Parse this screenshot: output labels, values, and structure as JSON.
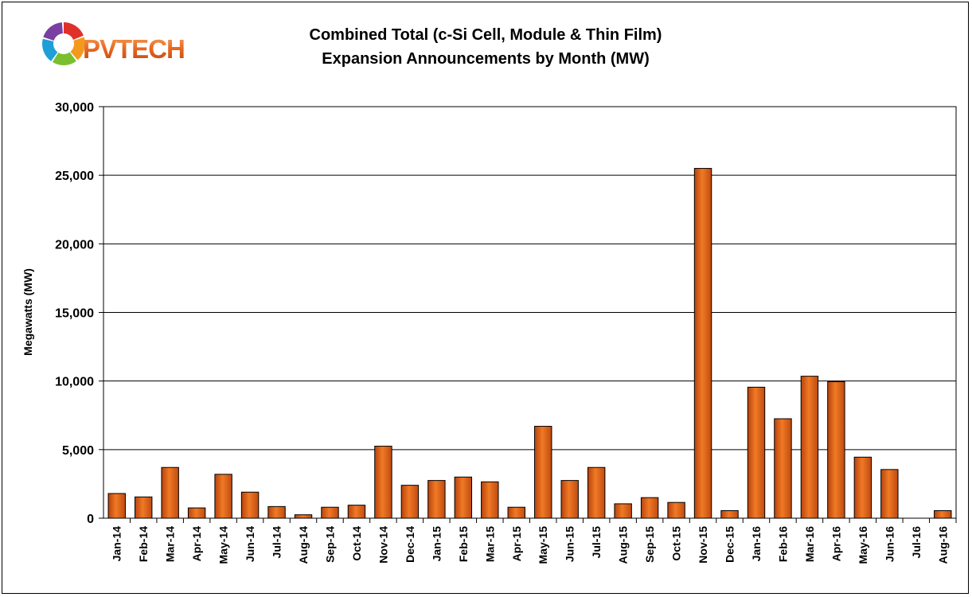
{
  "logo": {
    "text": "PVTECH",
    "text_color": "#e8661f",
    "ring_colors": [
      "#e0302a",
      "#f39a1c",
      "#7bbf2f",
      "#1e9fd8",
      "#7a3fa0"
    ]
  },
  "chart_data": {
    "type": "bar",
    "title_lines": [
      "Combined Total (c-Si Cell, Module & Thin Film)",
      "Expansion Announcements by Month (MW)"
    ],
    "xlabel": "",
    "ylabel": "Megawatts (MW)",
    "ylim": [
      0,
      30000
    ],
    "yticks": [
      0,
      5000,
      10000,
      15000,
      20000,
      25000,
      30000
    ],
    "ytick_labels": [
      "0",
      "5,000",
      "10,000",
      "15,000",
      "20,000",
      "25,000",
      "30,000"
    ],
    "grid": true,
    "legend": "none",
    "bar_color": "#e8661f",
    "categories": [
      "Jan-14",
      "Feb-14",
      "Mar-14",
      "Apr-14",
      "May-14",
      "Jun-14",
      "Jul-14",
      "Aug-14",
      "Sep-14",
      "Oct-14",
      "Nov-14",
      "Dec-14",
      "Jan-15",
      "Feb-15",
      "Mar-15",
      "Apr-15",
      "May-15",
      "Jun-15",
      "Jul-15",
      "Aug-15",
      "Sep-15",
      "Oct-15",
      "Nov-15",
      "Dec-15",
      "Jan-16",
      "Feb-16",
      "Mar-16",
      "Apr-16",
      "May-16",
      "Jun-16",
      "Jul-16",
      "Aug-16"
    ],
    "values": [
      1800,
      1550,
      3700,
      750,
      3200,
      1900,
      850,
      250,
      800,
      950,
      5250,
      2400,
      2750,
      3000,
      2650,
      800,
      6700,
      2750,
      3700,
      1050,
      1500,
      1150,
      25500,
      550,
      9550,
      7250,
      10350,
      9950,
      4450,
      3550,
      0,
      550
    ]
  }
}
